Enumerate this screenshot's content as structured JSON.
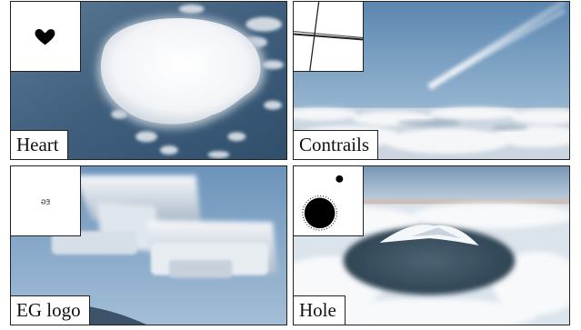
{
  "panels": [
    {
      "id": "heart",
      "label": "Heart",
      "mask_shape": "heart"
    },
    {
      "id": "contrails",
      "label": "Contrails",
      "mask_shape": "crossing-lines"
    },
    {
      "id": "eg-logo",
      "label": "EG logo",
      "mask_shape": "text-logo",
      "mask_text": "EG"
    },
    {
      "id": "hole",
      "label": "Hole",
      "mask_shape": "blobs"
    }
  ]
}
